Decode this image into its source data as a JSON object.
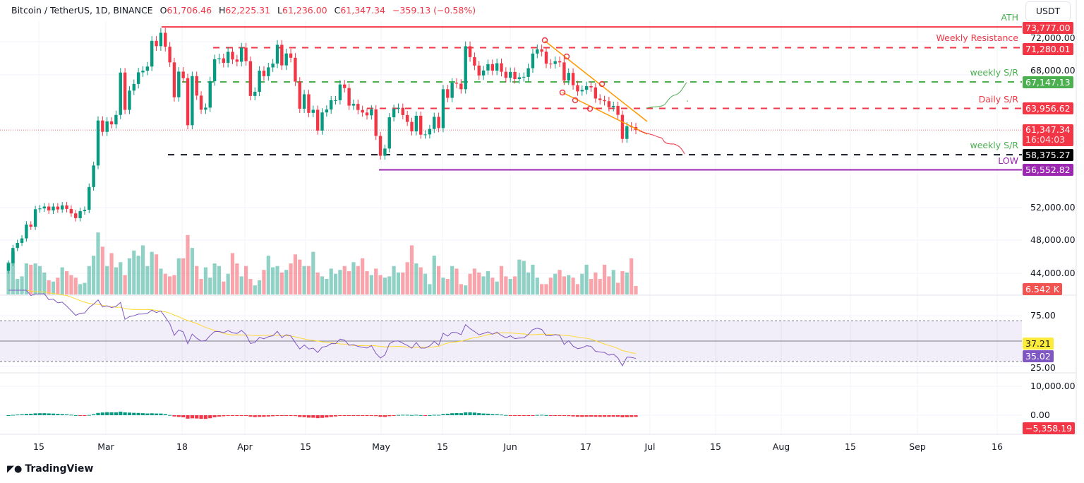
{
  "header": {
    "symbol": "Bitcoin / TetherUS, 1D, BINANCE",
    "open_label": "O",
    "open": "61,706.46",
    "high_label": "H",
    "high": "62,225.31",
    "low_label": "L",
    "low": "61,236.00",
    "close_label": "C",
    "close": "61,347.34",
    "change": "−359.13 (−0.58%)"
  },
  "currency": "USDT",
  "colors": {
    "up": "#089981",
    "down": "#f23645",
    "rsi": "#7e57c2",
    "rsi_ma": "#fdd835",
    "ath": "#f23645",
    "resistance": "#f23645",
    "support_green": "#4caf50",
    "support_black": "#131722",
    "low": "#9c27b0",
    "trendline": "#ff9800"
  },
  "levels": [
    {
      "name": "ATH",
      "value": 73777.0,
      "label": "73,777.00",
      "color": "#f23645",
      "label_color": "#4caf50",
      "style": "solid"
    },
    {
      "name": "Weekly Resistance",
      "value": 71280.01,
      "label": "71,280.01",
      "color": "#f23645",
      "label_color": "#f23645",
      "style": "dashed"
    },
    {
      "name": "weekly S/R",
      "value": 67147.13,
      "label": "67,147.13",
      "color": "#4caf50",
      "label_color": "#4caf50",
      "style": "dashed"
    },
    {
      "name": "Daily S/R",
      "value": 63956.62,
      "label": "63,956.62",
      "color": "#f23645",
      "label_color": "#f23645",
      "style": "dashed"
    },
    {
      "name": "weekly S/R",
      "value": 58375.27,
      "label": "58,375.27",
      "color": "#131722",
      "label_color": "#4caf50",
      "style": "dashed"
    },
    {
      "name": "LOW",
      "value": 56552.82,
      "label": "56,552.82",
      "color": "#9c27b0",
      "label_color": "#9c27b0",
      "style": "solid"
    }
  ],
  "last_price": {
    "value": 61347.34,
    "label": "61,347.34",
    "countdown": "16:04:03"
  },
  "price_axis": [
    "72,000.00",
    "68,000.00",
    "52,000.00",
    "48,000.00",
    "44,000.00"
  ],
  "volume_last": "6.542 K",
  "rsi_axis": [
    "75.00",
    "25.00"
  ],
  "rsi_ma_last": "37.21",
  "rsi_last": "35.02",
  "macd_axis": [
    "10,000.00",
    "0.00"
  ],
  "macd_hist_last": "−5,358.19",
  "time_axis": [
    "15",
    "Mar",
    "18",
    "Apr",
    "15",
    "May",
    "15",
    "Jun",
    "17",
    "Jul",
    "15",
    "Aug",
    "15",
    "Sep",
    "16"
  ],
  "brand": "TradingView",
  "chart_data": {
    "type": "candlestick",
    "start_date": "Feb 8",
    "closes": [
      45290,
      47132,
      47750,
      48292,
      49958,
      49700,
      51800,
      51900,
      52130,
      51660,
      52120,
      51780,
      52260,
      51840,
      51300,
      50730,
      51570,
      51730,
      54480,
      57080,
      62500,
      61130,
      62390,
      62030,
      63170,
      68280,
      63780,
      66100,
      66900,
      68300,
      68500,
      69000,
      72100,
      71460,
      73070,
      71390,
      69500,
      65300,
      68390,
      67600,
      61930,
      67850,
      65500,
      63800,
      64050,
      67230,
      69880,
      69990,
      69450,
      70780,
      69850,
      69580,
      71280,
      69650,
      65460,
      65960,
      68500,
      67840,
      68900,
      69360,
      71620,
      69140,
      70580,
      70060,
      67190,
      63920,
      65660,
      63420,
      63790,
      61280,
      63470,
      63820,
      64940,
      64940,
      66840,
      66410,
      64290,
      64500,
      63770,
      63460,
      63120,
      63840,
      60640,
      58250,
      59120,
      62890,
      63890,
      64030,
      63160,
      62330,
      61190,
      63070,
      60790,
      60820,
      61480,
      62940,
      61580,
      66270,
      65230,
      67050,
      66940,
      66270,
      71450,
      70140,
      69120,
      67930,
      68530,
      69290,
      68510,
      69400,
      68370,
      67640,
      68350,
      67490,
      67710,
      67760,
      68800,
      70570,
      71080,
      70790,
      69350,
      69310,
      69650,
      69500,
      67320,
      68240,
      66750,
      66010,
      66190,
      66640,
      66490,
      65150,
      64960,
      64830,
      64100,
      64260,
      63180,
      60280,
      61800,
      61706,
      61347
    ],
    "volumes_k": [
      25,
      33,
      12,
      14,
      24,
      23,
      24,
      22,
      17,
      11,
      10,
      13,
      21,
      18,
      15,
      13,
      8,
      9,
      22,
      30,
      48,
      37,
      22,
      32,
      21,
      25,
      15,
      28,
      34,
      30,
      38,
      22,
      33,
      31,
      20,
      16,
      14,
      15,
      28,
      28,
      46,
      36,
      22,
      12,
      21,
      13,
      24,
      22,
      10,
      16,
      32,
      24,
      14,
      22,
      12,
      7,
      11,
      19,
      30,
      21,
      22,
      17,
      19,
      24,
      31,
      27,
      22,
      22,
      33,
      17,
      14,
      12,
      20,
      16,
      19,
      22,
      18,
      25,
      22,
      28,
      18,
      15,
      20,
      15,
      13,
      14,
      22,
      17,
      17,
      25,
      38,
      24,
      21,
      16,
      8,
      30,
      22,
      13,
      12,
      22,
      20,
      8,
      7,
      16,
      20,
      17,
      14,
      18,
      13,
      10,
      22,
      14,
      12,
      14,
      27,
      26,
      17,
      23,
      13,
      8,
      8,
      13,
      16,
      19,
      14,
      15,
      13,
      8,
      16,
      23,
      12,
      17,
      12,
      23,
      14,
      19,
      9,
      18,
      17,
      28,
      6.542
    ],
    "indicators": [
      "Volume",
      "RSI 14 with SMA 14",
      "MACD histogram"
    ]
  }
}
